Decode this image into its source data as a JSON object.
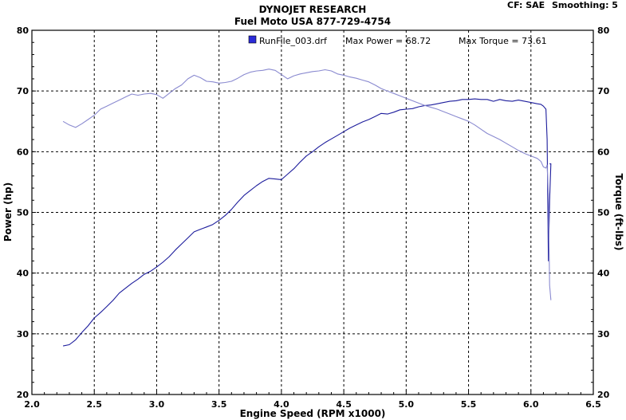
{
  "header": {
    "title": "DYNOJET RESEARCH",
    "subtitle": "Fuel Moto USA 877-729-4754",
    "cf_label": "CF: SAE",
    "smoothing_label": "Smoothing: 5"
  },
  "legend": {
    "run_file": "RunFile_003.drf",
    "max_power": "Max Power = 68.72",
    "max_torque": "Max Torque = 73.61"
  },
  "colors": {
    "power": "#1c1c9c",
    "torque": "#8a8ad0",
    "legend_swatch": "#2b2bd8"
  },
  "chart_data": {
    "type": "line",
    "xlabel": "Engine Speed (RPM x1000)",
    "ylabel": "Power (hp)",
    "y2label": "Torque (ft-lbs)",
    "xlim": [
      2.0,
      6.5
    ],
    "ylim": [
      20,
      80
    ],
    "y2lim": [
      20,
      80
    ],
    "xticks": [
      "2.0",
      "2.5",
      "3.0",
      "3.5",
      "4.0",
      "4.5",
      "5.0",
      "5.5",
      "6.0",
      "6.5"
    ],
    "yticks": [
      "20",
      "30",
      "40",
      "50",
      "60",
      "70",
      "80"
    ],
    "y2ticks": [
      "20",
      "30",
      "40",
      "50",
      "60",
      "70",
      "80"
    ],
    "grid": true,
    "series": [
      {
        "name": "Power",
        "axis": "left",
        "x": [
          2.25,
          2.3,
          2.35,
          2.4,
          2.45,
          2.5,
          2.55,
          2.6,
          2.65,
          2.7,
          2.75,
          2.8,
          2.85,
          2.9,
          2.95,
          3.0,
          3.05,
          3.1,
          3.15,
          3.2,
          3.25,
          3.3,
          3.35,
          3.4,
          3.45,
          3.5,
          3.55,
          3.6,
          3.65,
          3.7,
          3.75,
          3.8,
          3.85,
          3.9,
          3.95,
          4.0,
          4.05,
          4.1,
          4.15,
          4.2,
          4.25,
          4.3,
          4.35,
          4.4,
          4.45,
          4.5,
          4.55,
          4.6,
          4.65,
          4.7,
          4.75,
          4.8,
          4.85,
          4.9,
          4.95,
          5.0,
          5.05,
          5.1,
          5.15,
          5.2,
          5.25,
          5.3,
          5.35,
          5.4,
          5.45,
          5.5,
          5.55,
          5.6,
          5.65,
          5.7,
          5.75,
          5.8,
          5.85,
          5.9,
          5.95,
          6.0,
          6.05,
          6.08,
          6.1,
          6.12,
          6.13,
          6.14,
          6.15,
          6.16,
          6.15
        ],
        "values": [
          28,
          28.2,
          29,
          30.2,
          31.3,
          32.6,
          33.5,
          34.5,
          35.5,
          36.7,
          37.5,
          38.3,
          39,
          39.8,
          40.3,
          41,
          41.8,
          42.7,
          43.8,
          44.8,
          45.8,
          46.8,
          47.2,
          47.6,
          48,
          48.7,
          49.5,
          50.5,
          51.7,
          52.8,
          53.6,
          54.4,
          55.1,
          55.6,
          55.5,
          55.4,
          56.3,
          57.2,
          58.3,
          59.3,
          60,
          60.8,
          61.5,
          62.1,
          62.7,
          63.3,
          63.9,
          64.4,
          64.9,
          65.3,
          65.8,
          66.3,
          66.2,
          66.5,
          66.9,
          67,
          67.1,
          67.4,
          67.6,
          67.7,
          67.9,
          68.1,
          68.3,
          68.4,
          68.6,
          68.6,
          68.7,
          68.6,
          68.6,
          68.3,
          68.6,
          68.4,
          68.3,
          68.5,
          68.3,
          68.1,
          67.9,
          67.8,
          67.5,
          67,
          62,
          42,
          52,
          58,
          58
        ]
      },
      {
        "name": "Torque",
        "axis": "right",
        "x": [
          2.25,
          2.3,
          2.35,
          2.4,
          2.45,
          2.5,
          2.55,
          2.6,
          2.65,
          2.7,
          2.75,
          2.8,
          2.85,
          2.9,
          2.95,
          3.0,
          3.05,
          3.1,
          3.15,
          3.2,
          3.25,
          3.3,
          3.35,
          3.4,
          3.45,
          3.5,
          3.55,
          3.6,
          3.65,
          3.7,
          3.75,
          3.8,
          3.85,
          3.9,
          3.95,
          4.0,
          4.05,
          4.1,
          4.15,
          4.2,
          4.25,
          4.3,
          4.35,
          4.4,
          4.45,
          4.5,
          4.55,
          4.6,
          4.65,
          4.7,
          4.75,
          4.8,
          4.85,
          4.9,
          4.95,
          5.0,
          5.05,
          5.1,
          5.15,
          5.2,
          5.25,
          5.3,
          5.35,
          5.4,
          5.45,
          5.5,
          5.55,
          5.6,
          5.65,
          5.7,
          5.75,
          5.8,
          5.85,
          5.9,
          5.95,
          6.0,
          6.05,
          6.08,
          6.1,
          6.12,
          6.13,
          6.14,
          6.15,
          6.16,
          6.15
        ],
        "values": [
          65,
          64.4,
          64,
          64.6,
          65.3,
          66,
          67,
          67.5,
          68,
          68.5,
          69,
          69.5,
          69.3,
          69.5,
          69.6,
          69.4,
          68.8,
          69.6,
          70.4,
          71,
          72,
          72.6,
          72.2,
          71.6,
          71.5,
          71.3,
          71.4,
          71.6,
          72.1,
          72.7,
          73.1,
          73.3,
          73.4,
          73.6,
          73.4,
          72.7,
          72,
          72.5,
          72.8,
          73,
          73.2,
          73.3,
          73.5,
          73.3,
          72.8,
          72.6,
          72.3,
          72.1,
          71.8,
          71.5,
          71,
          70.4,
          70,
          69.6,
          69.2,
          68.8,
          68.4,
          68,
          67.6,
          67.3,
          67,
          66.6,
          66.2,
          65.8,
          65.4,
          65,
          64.4,
          63.7,
          63,
          62.5,
          62,
          61.4,
          60.8,
          60.2,
          59.7,
          59.3,
          58.9,
          58.4,
          57.5,
          57.3,
          57.8,
          53,
          38,
          35.6,
          38
        ]
      }
    ]
  }
}
